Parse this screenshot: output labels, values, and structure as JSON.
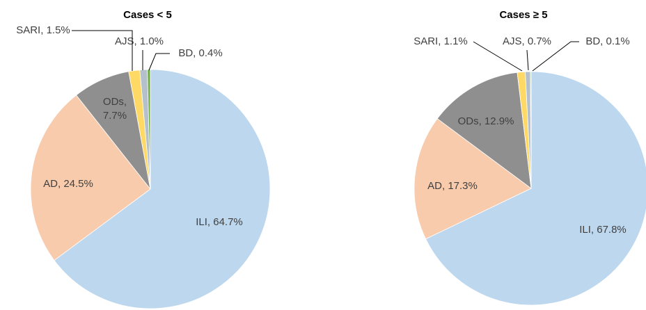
{
  "chart_data": [
    {
      "type": "pie",
      "title": "Cases < 5",
      "categories": [
        "ILI",
        "AD",
        "ODs",
        "SARI",
        "AJS",
        "BD"
      ],
      "values": [
        64.7,
        24.5,
        7.7,
        1.5,
        1.0,
        0.4
      ],
      "value_labels": [
        "ILI, 64.7%",
        "AD, 24.5%",
        "ODs, 7.7%",
        "SARI, 1.5%",
        "AJS, 1.0%",
        "BD, 0.4%"
      ],
      "colors": [
        "#bdd7ee",
        "#f8cbad",
        "#8f8f8f",
        "#ffd966",
        "#b4c0cc",
        "#70ad47"
      ]
    },
    {
      "type": "pie",
      "title": "Cases ≥ 5",
      "categories": [
        "ILI",
        "AD",
        "ODs",
        "SARI",
        "AJS",
        "BD"
      ],
      "values": [
        67.8,
        17.3,
        12.9,
        1.1,
        0.7,
        0.1
      ],
      "value_labels": [
        "ILI, 67.8%",
        "AD, 17.3%",
        "ODs, 12.9%",
        "SARI, 1.1%",
        "AJS, 0.7%",
        "BD, 0.1%"
      ],
      "colors": [
        "#bdd7ee",
        "#f8cbad",
        "#8f8f8f",
        "#ffd966",
        "#b4c0cc",
        "#70ad47"
      ]
    }
  ]
}
